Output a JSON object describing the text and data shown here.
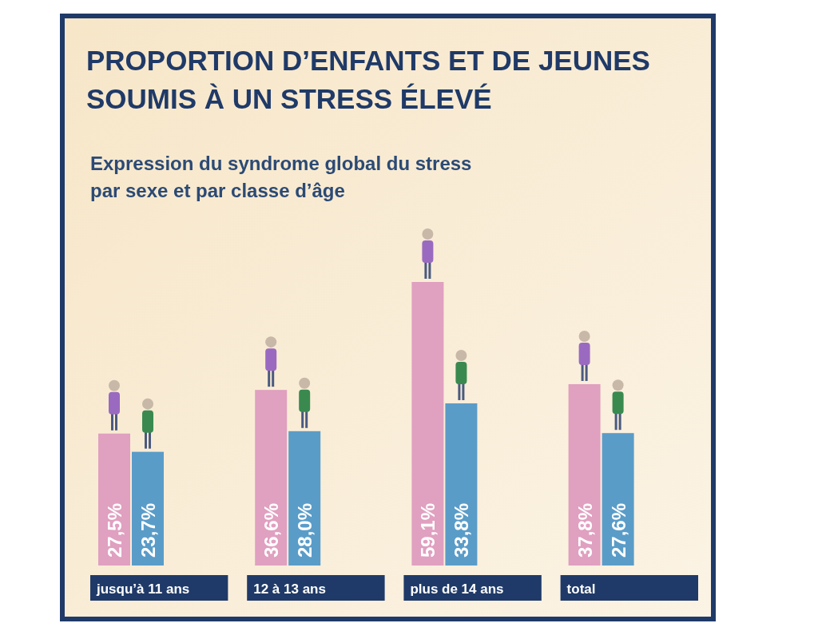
{
  "chart_data": {
    "type": "bar",
    "title": "PROPORTION D’ENFANTS ET DE JEUNES\nSOUMIS À UN STRESS ÉLEVÉ",
    "subtitle": "Expression du syndrome global du stress\npar sexe et par classe d’âge",
    "categories": [
      "jusqu’à 11 ans",
      "12 à 13 ans",
      "plus de 14 ans",
      "total"
    ],
    "series": [
      {
        "color": "#e0a0c0",
        "values": [
          27.5,
          36.6,
          59.1,
          37.8
        ],
        "value_labels": [
          "27,5%",
          "36,6%",
          "59,1%",
          "37,8%"
        ]
      },
      {
        "color": "#5a9cc8",
        "values": [
          23.7,
          28.0,
          33.8,
          27.6
        ],
        "value_labels": [
          "23,7%",
          "28,0%",
          "33,8%",
          "27,6%"
        ]
      }
    ]
  }
}
